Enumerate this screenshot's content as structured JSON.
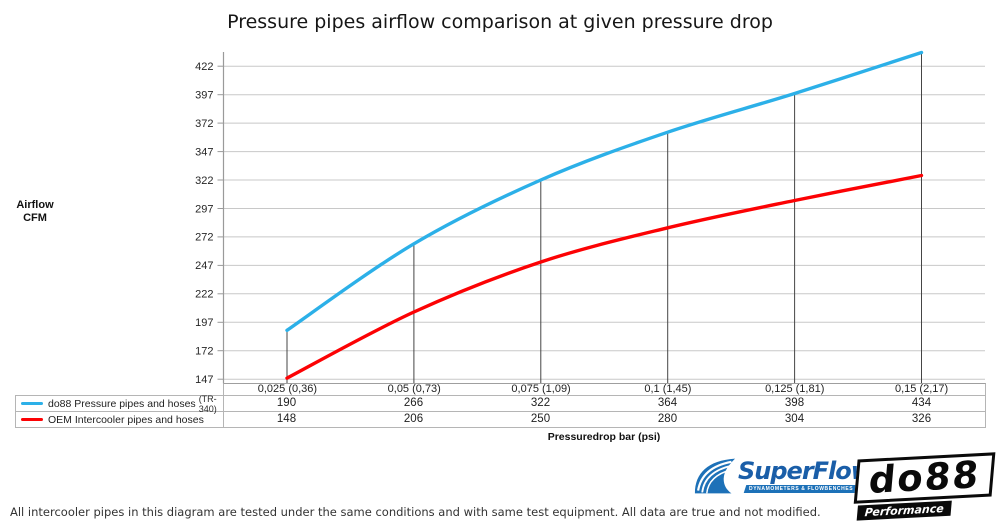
{
  "title": "Pressure pipes airflow comparison at given pressure drop",
  "axis": {
    "ylabel_line1": "Airflow",
    "ylabel_line2": "CFM",
    "xlabel": "Pressuredrop bar (psi)"
  },
  "chart_data": {
    "type": "line",
    "title": "Pressure pipes airflow comparison at given pressure drop",
    "xlabel": "Pressuredrop bar (psi)",
    "ylabel": "Airflow CFM",
    "categories": [
      "0,025 (0,36)",
      "0,05 (0,73)",
      "0,075 (1,09)",
      "0,1 (1,45)",
      "0,125 (1,81)",
      "0,15 (2,17)"
    ],
    "series": [
      {
        "name": "do88 Pressure pipes and hoses",
        "suffix": "(TR-340)",
        "color": "#2cb0e8",
        "values": [
          190,
          266,
          322,
          364,
          398,
          434
        ]
      },
      {
        "name": "OEM Intercooler pipes and hoses",
        "suffix": "",
        "color": "#fc0204",
        "values": [
          148,
          206,
          250,
          280,
          304,
          326
        ]
      }
    ],
    "y_ticks": [
      147,
      172,
      197,
      222,
      247,
      272,
      297,
      322,
      347,
      372,
      397,
      422
    ],
    "ylim": [
      143.5,
      434.5
    ],
    "grid": true,
    "smooth_lines": true,
    "droplines": true,
    "legend_position": "bottom-left-table"
  },
  "footnote": "All intercooler pipes in this diagram are tested under the same conditions and with same test equipment. All data are true and not modified.",
  "logos": {
    "superflow": {
      "name": "SuperFlow",
      "registered": "®",
      "tagline": "DYNAMOMETERS & FLOWBENCHES",
      "color": "#1d71b8"
    },
    "do88": {
      "name": "do88",
      "tagline": "Performance"
    }
  },
  "colors": {
    "gridline": "#c8c8c8",
    "axis": "#9a9a9a",
    "dropline": "#454545",
    "table_border": "#b5b5b5"
  }
}
